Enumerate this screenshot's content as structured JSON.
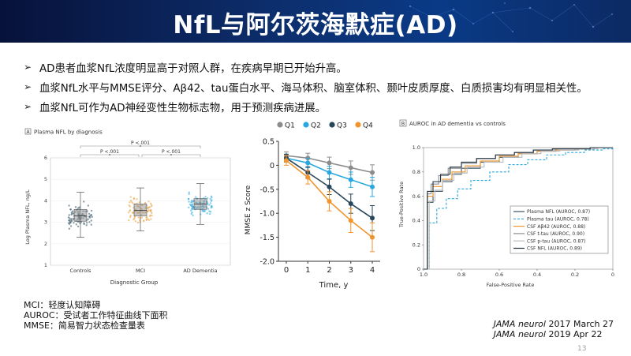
{
  "title": "NfL与阿尔茨海默症(AD)",
  "bullets": [
    "AD患者血浆NfL浓度明显高于对照人群，在疾病早期已开始升高。",
    "血浆NfL水平与MMSE评分、Aβ42、tau蛋白水平、海马体积、脑室体积、颞叶皮质厚度、白质损害均有明显相关性。",
    "血浆NfL可作为AD神经变性生物标志物，用于预测疾病进展。"
  ],
  "footnotes": [
    "MCI：轻度认知障碍",
    "AUROC：受试者工作特征曲线下面积",
    "MMSE：简易智力状态检查量表"
  ],
  "references": [
    {
      "journal": "JAMA neurol",
      "date": "2017 March 27"
    },
    {
      "journal": "JAMA neurol",
      "date": "2019 Apr 22"
    }
  ],
  "page_number": "13",
  "chart_data": [
    {
      "type": "box",
      "panel_label": "A",
      "title": "Plasma NFL by diagnosis",
      "xlabel": "Diagnostic Group",
      "ylabel": "Log Plasma NFL, ng/L",
      "categories": [
        "Controls",
        "MCI",
        "AD Dementia"
      ],
      "colors": [
        "#2d4f5e",
        "#e8a23c",
        "#2aa7dd"
      ],
      "ylim": [
        1,
        6
      ],
      "yticks": [
        "1",
        "2",
        "3",
        "4",
        "5",
        "6"
      ],
      "medians": [
        3.3,
        3.55,
        3.85
      ],
      "q1": [
        3.05,
        3.3,
        3.6
      ],
      "q3": [
        3.6,
        3.85,
        4.1
      ],
      "whisker_low": [
        2.3,
        2.6,
        2.9
      ],
      "whisker_high": [
        4.4,
        4.6,
        4.8
      ],
      "significance": [
        {
          "from": 0,
          "to": 1,
          "label": "P <.001"
        },
        {
          "from": 1,
          "to": 2,
          "label": "P <.001"
        },
        {
          "from": 0,
          "to": 2,
          "label": "P <.001"
        }
      ]
    },
    {
      "type": "line",
      "xlabel": "Time, y",
      "ylabel": "MMSE z Score",
      "x": [
        0,
        1,
        2,
        3,
        4
      ],
      "xticks": [
        "0",
        "1",
        "2",
        "3",
        "4"
      ],
      "ylim": [
        -2.0,
        0.5
      ],
      "yticks": [
        "0.5",
        "0",
        "-0.5",
        "-1.0",
        "-1.5",
        "-2.0"
      ],
      "legend_position": "top",
      "series": [
        {
          "name": "Q1",
          "color": "#8c8c8c",
          "values": [
            0.2,
            0.15,
            0.05,
            -0.05,
            -0.15
          ],
          "err": [
            0.08,
            0.1,
            0.12,
            0.14,
            0.16
          ]
        },
        {
          "name": "Q2",
          "color": "#29a8e0",
          "values": [
            0.15,
            0.05,
            -0.15,
            -0.3,
            -0.45
          ],
          "err": [
            0.08,
            0.1,
            0.13,
            0.16,
            0.2
          ]
        },
        {
          "name": "Q3",
          "color": "#27465a",
          "values": [
            0.15,
            -0.15,
            -0.45,
            -0.8,
            -1.1
          ],
          "err": [
            0.08,
            0.12,
            0.16,
            0.2,
            0.26
          ]
        },
        {
          "name": "Q4",
          "color": "#f0952d",
          "values": [
            0.1,
            -0.25,
            -0.75,
            -1.15,
            -1.5
          ],
          "err": [
            0.1,
            0.14,
            0.2,
            0.25,
            0.3
          ]
        }
      ]
    },
    {
      "type": "line",
      "panel_label": "B",
      "title": "AUROC in AD dementia vs controls",
      "xlabel": "False-Positive Rate",
      "ylabel": "True-Positive Rate",
      "xticks": [
        "1.0",
        "0.8",
        "0.6",
        "0.4",
        "0.2",
        "0"
      ],
      "yticks": [
        "0",
        "0.2",
        "0.4",
        "0.6",
        "0.8",
        "1.0"
      ],
      "xlim": [
        1.0,
        0
      ],
      "ylim": [
        0,
        1.0
      ],
      "legend_position": "bottom-right",
      "series": [
        {
          "name": "Plasma NFL (AUROC, 0.87)",
          "color": "#3a5566",
          "dash": "",
          "x": [
            1.0,
            0.98,
            0.95,
            0.9,
            0.85,
            0.8,
            0.7,
            0.6,
            0.5,
            0.4,
            0.3,
            0.2,
            0.1,
            0
          ],
          "y": [
            0,
            0.55,
            0.64,
            0.72,
            0.78,
            0.83,
            0.88,
            0.92,
            0.95,
            0.97,
            0.98,
            0.99,
            1.0,
            1.0
          ]
        },
        {
          "name": "Plasma tau (AUROC, 0.78)",
          "color": "#2aa7dd",
          "dash": "3,2",
          "x": [
            1.0,
            0.97,
            0.93,
            0.88,
            0.82,
            0.75,
            0.65,
            0.55,
            0.45,
            0.35,
            0.25,
            0.15,
            0.05,
            0
          ],
          "y": [
            0,
            0.38,
            0.5,
            0.58,
            0.66,
            0.73,
            0.8,
            0.86,
            0.9,
            0.94,
            0.96,
            0.98,
            0.99,
            1.0
          ]
        },
        {
          "name": "CSF Aβ42 (AUROC, 0.88)",
          "color": "#f0952d",
          "dash": "",
          "x": [
            1.0,
            0.98,
            0.95,
            0.9,
            0.85,
            0.78,
            0.7,
            0.6,
            0.5,
            0.4,
            0.3,
            0.2,
            0.1,
            0
          ],
          "y": [
            0,
            0.6,
            0.68,
            0.74,
            0.8,
            0.85,
            0.89,
            0.93,
            0.95,
            0.97,
            0.98,
            0.99,
            1.0,
            1.0
          ]
        },
        {
          "name": "CSF t-tau (AUROC, 0.90)",
          "color": "#8a8f94",
          "dash": "",
          "x": [
            1.0,
            0.98,
            0.96,
            0.92,
            0.87,
            0.8,
            0.72,
            0.62,
            0.52,
            0.42,
            0.3,
            0.2,
            0.1,
            0
          ],
          "y": [
            0,
            0.62,
            0.7,
            0.77,
            0.83,
            0.87,
            0.91,
            0.94,
            0.96,
            0.98,
            0.99,
            0.99,
            1.0,
            1.0
          ]
        },
        {
          "name": "CSF p-tau (AUROC, 0.87)",
          "color": "#b8bcc0",
          "dash": "",
          "x": [
            1.0,
            0.97,
            0.94,
            0.9,
            0.84,
            0.77,
            0.68,
            0.58,
            0.48,
            0.38,
            0.28,
            0.18,
            0.08,
            0
          ],
          "y": [
            0,
            0.56,
            0.65,
            0.73,
            0.79,
            0.84,
            0.88,
            0.92,
            0.95,
            0.97,
            0.98,
            0.99,
            1.0,
            1.0
          ]
        },
        {
          "name": "CSF NFL (AUROC, 0.89)",
          "color": "#1f2f3a",
          "dash": "",
          "x": [
            1.0,
            0.98,
            0.95,
            0.91,
            0.86,
            0.8,
            0.72,
            0.62,
            0.52,
            0.42,
            0.32,
            0.22,
            0.12,
            0
          ],
          "y": [
            0,
            0.64,
            0.72,
            0.78,
            0.84,
            0.88,
            0.91,
            0.94,
            0.96,
            0.98,
            0.99,
            0.99,
            1.0,
            1.0
          ]
        }
      ]
    }
  ]
}
